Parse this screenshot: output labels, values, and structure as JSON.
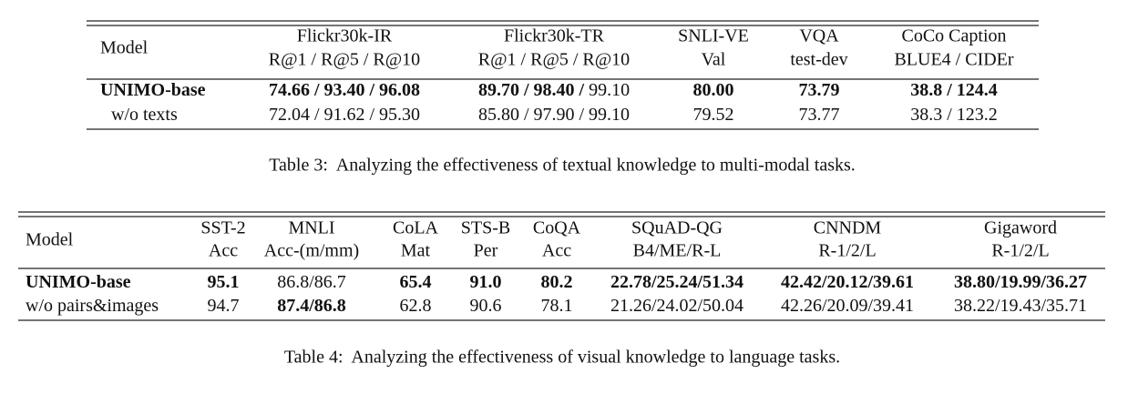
{
  "table3": {
    "columns": [
      [
        "Model"
      ],
      [
        "Flickr30k-IR",
        "R@1 / R@5 / R@10"
      ],
      [
        "Flickr30k-TR",
        "R@1 / R@5 / R@10"
      ],
      [
        "SNLI-VE",
        "Val"
      ],
      [
        "VQA",
        "test-dev"
      ],
      [
        "CoCo Caption",
        "BLUE4 / CIDEr"
      ]
    ],
    "rows": [
      [
        [
          {
            "text": "UNIMO-base",
            "bold": true
          }
        ],
        [
          {
            "text": "74.66 / 93.40 / 96.08",
            "bold": true
          }
        ],
        [
          {
            "text": "89.70 / 98.40 /",
            "bold": true
          },
          {
            "text": "99.10",
            "bold": false
          }
        ],
        [
          {
            "text": "80.00",
            "bold": true
          }
        ],
        [
          {
            "text": "73.79",
            "bold": true
          }
        ],
        [
          {
            "text": "38.8 / 124.4",
            "bold": true
          }
        ]
      ],
      [
        [
          {
            "text": "w/o texts",
            "bold": false
          }
        ],
        [
          {
            "text": "72.04 / 91.62 / 95.30",
            "bold": false
          }
        ],
        [
          {
            "text": "85.80 / 97.90 / 99.10",
            "bold": false
          }
        ],
        [
          {
            "text": "79.52",
            "bold": false
          }
        ],
        [
          {
            "text": "73.77",
            "bold": false
          }
        ],
        [
          {
            "text": "38.3 / 123.2",
            "bold": false
          }
        ]
      ]
    ],
    "caption": "Table 3:  Analyzing the effectiveness of textual knowledge to multi-modal tasks."
  },
  "table4": {
    "columns": [
      [
        "Model"
      ],
      [
        "SST-2",
        "Acc"
      ],
      [
        "MNLI",
        "Acc-(m/mm)"
      ],
      [
        "CoLA",
        "Mat"
      ],
      [
        "STS-B",
        "Per"
      ],
      [
        "CoQA",
        "Acc"
      ],
      [
        "SQuAD-QG",
        "B4/ME/R-L"
      ],
      [
        "CNNDM",
        "R-1/2/L"
      ],
      [
        "Gigaword",
        "R-1/2/L"
      ]
    ],
    "rows": [
      [
        [
          {
            "text": "UNIMO-base",
            "bold": true
          }
        ],
        [
          {
            "text": "95.1",
            "bold": true
          }
        ],
        [
          {
            "text": "86.8/86.7",
            "bold": false
          }
        ],
        [
          {
            "text": "65.4",
            "bold": true
          }
        ],
        [
          {
            "text": "91.0",
            "bold": true
          }
        ],
        [
          {
            "text": "80.2",
            "bold": true
          }
        ],
        [
          {
            "text": "22.78/25.24/51.34",
            "bold": true
          }
        ],
        [
          {
            "text": "42.42/20.12/39.61",
            "bold": true
          }
        ],
        [
          {
            "text": "38.80/19.99/36.27",
            "bold": true
          }
        ]
      ],
      [
        [
          {
            "text": "w/o pairs&images",
            "bold": false
          }
        ],
        [
          {
            "text": "94.7",
            "bold": false
          }
        ],
        [
          {
            "text": "87.4/86.8",
            "bold": true
          }
        ],
        [
          {
            "text": "62.8",
            "bold": false
          }
        ],
        [
          {
            "text": "90.6",
            "bold": false
          }
        ],
        [
          {
            "text": "78.1",
            "bold": false
          }
        ],
        [
          {
            "text": "21.26/24.02/50.04",
            "bold": false
          }
        ],
        [
          {
            "text": "42.26/20.09/39.41",
            "bold": false
          }
        ],
        [
          {
            "text": "38.22/19.43/35.71",
            "bold": false
          }
        ]
      ]
    ],
    "caption": "Table 4:  Analyzing the effectiveness of visual knowledge to language tasks."
  }
}
